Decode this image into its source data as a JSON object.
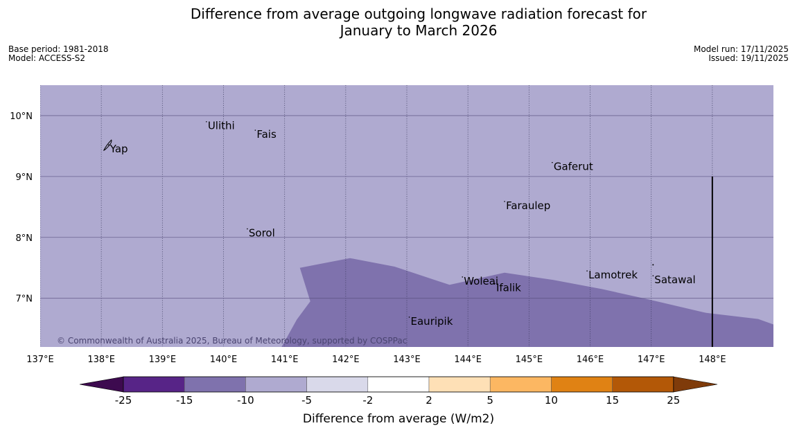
{
  "title": {
    "line1": "Difference from average outgoing longwave radiation forecast for",
    "line2": "January to March 2026"
  },
  "info": {
    "base_period": "Base period: 1981-2018",
    "model": "Model: ACCESS-S2",
    "model_run": "Model run: 17/11/2025",
    "issued": "Issued: 19/11/2025"
  },
  "map": {
    "lon_range": [
      137,
      149
    ],
    "lat_range": [
      6.2,
      10.5
    ],
    "lon_ticks": [
      "137°E",
      "138°E",
      "139°E",
      "140°E",
      "141°E",
      "142°E",
      "143°E",
      "144°E",
      "145°E",
      "146°E",
      "147°E",
      "148°E"
    ],
    "lat_ticks": [
      "10°N",
      "9°N",
      "8°N",
      "7°N"
    ],
    "fill_dominant": "#afaad0",
    "fill_anomaly": "#7f72ad",
    "anomaly_region_lonlat": [
      [
        140.95,
        6.2
      ],
      [
        141.2,
        6.65
      ],
      [
        141.42,
        6.95
      ],
      [
        141.25,
        7.5
      ],
      [
        142.07,
        7.66
      ],
      [
        142.8,
        7.52
      ],
      [
        143.7,
        7.22
      ],
      [
        144.6,
        7.42
      ],
      [
        145.4,
        7.3
      ],
      [
        146.2,
        7.15
      ],
      [
        147.0,
        6.97
      ],
      [
        147.9,
        6.76
      ],
      [
        148.75,
        6.66
      ],
      [
        149.0,
        6.57
      ],
      [
        149.0,
        6.2
      ]
    ],
    "black_line_lon": 148.0,
    "black_line_lat_top": 9.0,
    "places": [
      {
        "name": "Ulithi",
        "lon": 139.72,
        "lat": 9.9
      },
      {
        "name": "Fais",
        "lon": 140.52,
        "lat": 9.76
      },
      {
        "name": "Yap",
        "lon": 138.12,
        "lat": 9.52
      },
      {
        "name": "Gaferut",
        "lon": 145.38,
        "lat": 9.23
      },
      {
        "name": "Faraulep",
        "lon": 144.6,
        "lat": 8.59
      },
      {
        "name": "Sorol",
        "lon": 140.39,
        "lat": 8.14
      },
      {
        "name": "Lamotrek",
        "lon": 145.95,
        "lat": 7.45
      },
      {
        "name": "Woleai",
        "lon": 143.91,
        "lat": 7.35
      },
      {
        "name": "Ifalik",
        "lon": 144.44,
        "lat": 7.24
      },
      {
        "name": "Satawal",
        "lon": 147.03,
        "lat": 7.37
      },
      {
        "name": "Eauripik",
        "lon": 143.04,
        "lat": 6.69
      }
    ],
    "copyright": "© Commonwealth of Australia 2025, Bureau of Meteorology, supported by COSPPac"
  },
  "colorbar": {
    "label": "Difference from average (W/m2)",
    "ticks": [
      "-25",
      "-15",
      "-10",
      "-5",
      "-2",
      "2",
      "5",
      "10",
      "15",
      "25"
    ],
    "under_color": "#3d0a4f",
    "over_color": "#7f3b0a",
    "colors": [
      "#572487",
      "#7f72ad",
      "#afaad0",
      "#d9d9ea",
      "#ffffff",
      "#fee0b6",
      "#fcb762",
      "#e08214",
      "#b35807"
    ]
  }
}
